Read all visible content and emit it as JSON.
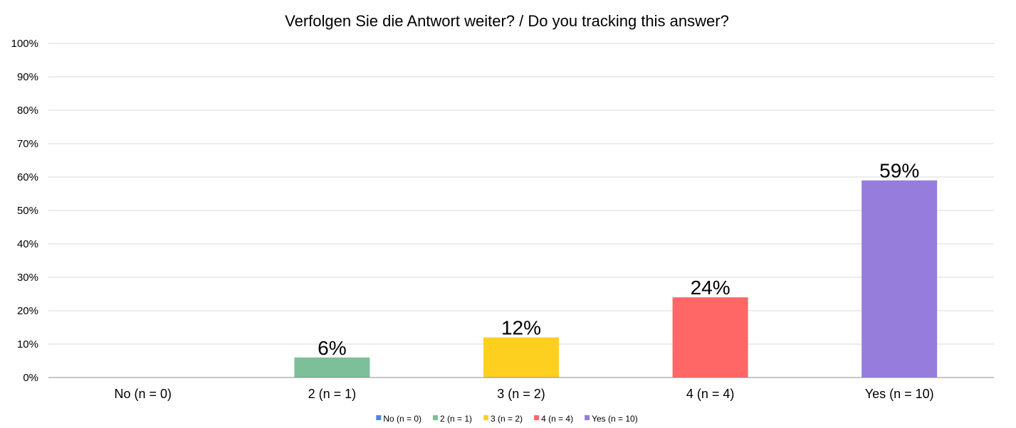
{
  "chart_data": {
    "type": "bar",
    "title": "Verfolgen Sie die Antwort weiter? / Do you tracking this answer?",
    "categories": [
      "No (n = 0)",
      "2 (n = 1)",
      "3 (n = 2)",
      "4 (n = 4)",
      "Yes (n = 10)"
    ],
    "values": [
      0,
      6,
      12,
      24,
      59
    ],
    "data_labels": [
      "",
      "6%",
      "12%",
      "24%",
      "59%"
    ],
    "colors": [
      "#4a86e8",
      "#7dbf99",
      "#fdd01f",
      "#ff6666",
      "#967ddc"
    ],
    "ylim": [
      0,
      100
    ],
    "yticks": [
      "0%",
      "10%",
      "20%",
      "30%",
      "40%",
      "50%",
      "60%",
      "70%",
      "80%",
      "90%",
      "100%"
    ],
    "xlabel": "",
    "ylabel": "",
    "grid": true,
    "legend": {
      "placement": "bottom",
      "entries": [
        "No (n = 0)",
        "2 (n = 1)",
        "3 (n = 2)",
        "4 (n = 4)",
        "Yes (n = 10)"
      ]
    }
  }
}
